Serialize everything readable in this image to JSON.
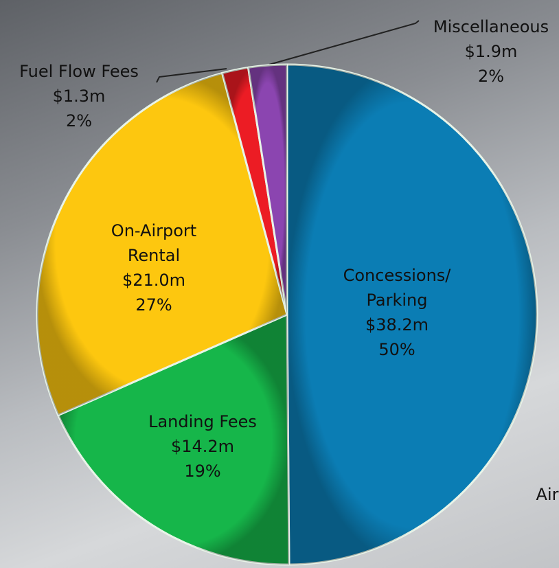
{
  "chart_data": {
    "type": "pie",
    "categories": [
      "Concessions/\nParking",
      "Landing Fees",
      "On-Airport\nRental",
      "Fuel Flow Fees",
      "Miscellaneous"
    ],
    "values": [
      38.2,
      14.2,
      21.0,
      1.3,
      1.9
    ],
    "value_labels": [
      "$38.2m",
      "$14.2m",
      "$21.0m",
      "$1.3m",
      "$1.9m"
    ],
    "percent_labels": [
      "50%",
      "19%",
      "27%",
      "2%",
      "2%"
    ],
    "colors": [
      "#0b7db4",
      "#16b64a",
      "#fdc70f",
      "#ec1c24",
      "#8b45b0"
    ],
    "annotations": [
      "Air"
    ]
  }
}
